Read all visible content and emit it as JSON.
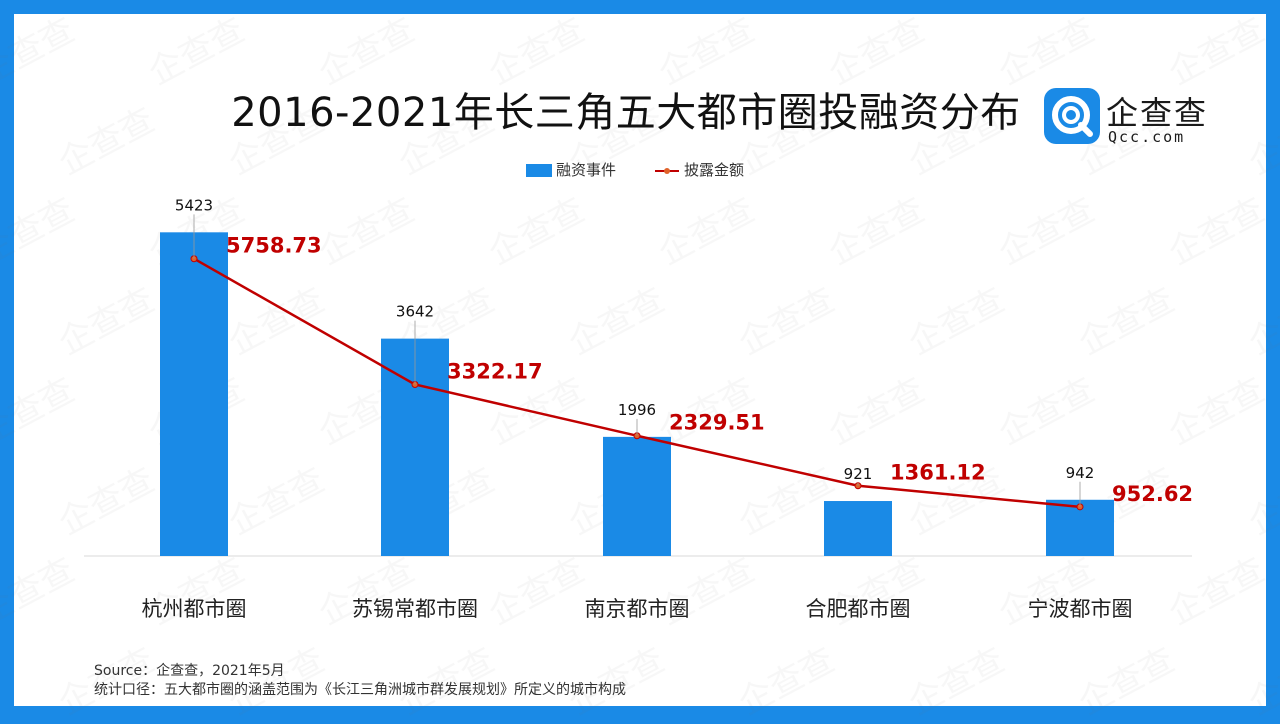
{
  "title": "2016-2021年长三角五大都市圈投融资分布",
  "logo": {
    "name_cn": "企查查",
    "name_en": "Qcc.com"
  },
  "watermark": "企查查",
  "colors": {
    "frame": "#1a8ae6",
    "bar": "#1a8ae6",
    "line": "#c00000"
  },
  "chart_data": {
    "type": "bar",
    "categories": [
      "杭州都市圈",
      "苏锡常都市圈",
      "南京都市圈",
      "合肥都市圈",
      "宁波都市圈"
    ],
    "series": [
      {
        "name": "融资事件",
        "type": "bar",
        "values": [
          5423,
          3642,
          1996,
          921,
          942
        ]
      },
      {
        "name": "披露金额",
        "type": "line",
        "values": [
          5758.73,
          3322.17,
          2329.51,
          1361.12,
          952.62
        ]
      }
    ],
    "ylim_bar": [
      0,
      6400
    ],
    "ylim_line": [
      0,
      7400
    ],
    "legend": "top-center",
    "grid": false
  },
  "bar_labels": [
    "5423",
    "3642",
    "1996",
    "921",
    "942"
  ],
  "line_labels": [
    "5758.73",
    "3322.17",
    "2329.51",
    "1361.12",
    "952.62"
  ],
  "footer": {
    "source": "Source：企查查，2021年5月",
    "note": "统计口径：五大都市圈的涵盖范围为《长江三角洲城市群发展规划》所定义的城市构成"
  }
}
